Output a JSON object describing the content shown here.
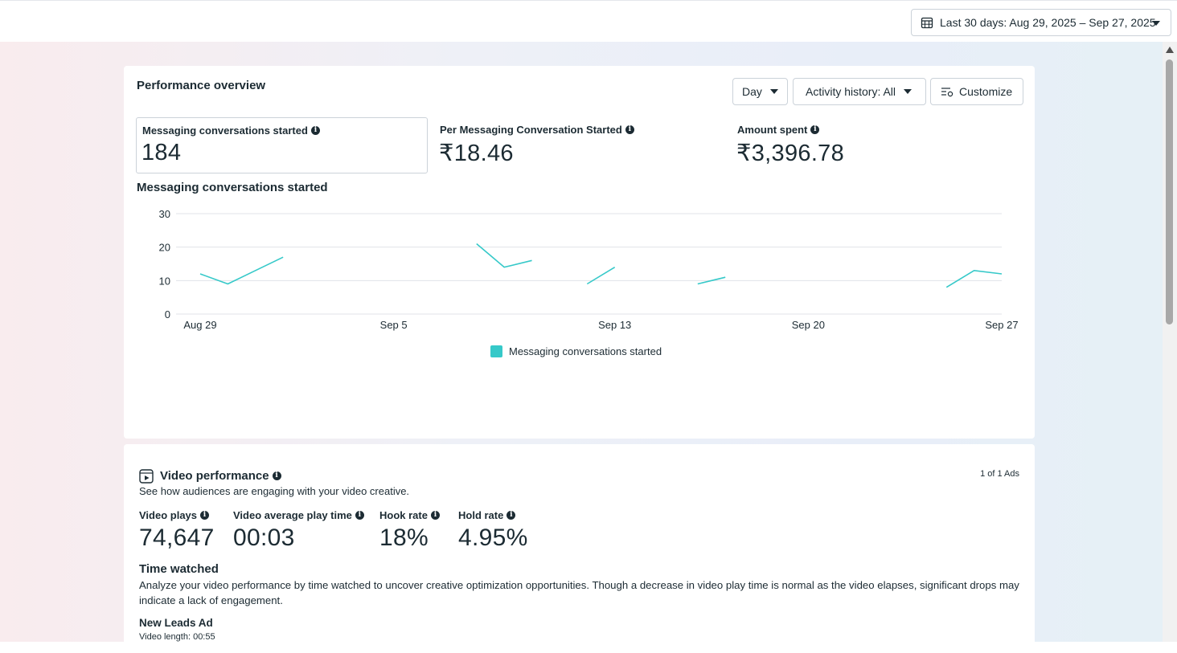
{
  "header": {
    "date_range_label": "Last 30 days: Aug 29, 2025 – Sep 27, 2025"
  },
  "performance": {
    "title": "Performance overview",
    "controls": {
      "day_label": "Day",
      "activity_label": "Activity history: All",
      "customize_label": "Customize"
    },
    "metrics": [
      {
        "label": "Messaging conversations started",
        "value": "184",
        "selected": true
      },
      {
        "label": "Per Messaging Conversation Started",
        "value": "₹18.46",
        "selected": false
      },
      {
        "label": "Amount spent",
        "value": "₹3,396.78",
        "selected": false
      }
    ],
    "chart_title": "Messaging conversations started",
    "legend_label": "Messaging conversations started"
  },
  "chart_data": {
    "type": "line",
    "title": "Messaging conversations started",
    "xlabel": "",
    "ylabel": "",
    "x_ticks": [
      "Aug 29",
      "Sep 5",
      "Sep 13",
      "Sep 20",
      "Sep 27"
    ],
    "y_ticks": [
      0,
      10,
      20,
      30
    ],
    "ylim": [
      0,
      30
    ],
    "grid": true,
    "legend_position": "bottom",
    "color": "#36c9c9",
    "series": [
      {
        "name": "Messaging conversations started",
        "points": [
          {
            "x": "Aug 29",
            "y": 12
          },
          {
            "x": "Aug 30",
            "y": 9
          },
          {
            "x": "Aug 31",
            "y": 13
          },
          {
            "x": "Sep 1",
            "y": 17
          },
          {
            "x": "Sep 2",
            "y": null
          },
          {
            "x": "Sep 3",
            "y": null
          },
          {
            "x": "Sep 4",
            "y": null
          },
          {
            "x": "Sep 5",
            "y": null
          },
          {
            "x": "Sep 6",
            "y": null
          },
          {
            "x": "Sep 7",
            "y": null
          },
          {
            "x": "Sep 8",
            "y": 21
          },
          {
            "x": "Sep 9",
            "y": 14
          },
          {
            "x": "Sep 10",
            "y": 16
          },
          {
            "x": "Sep 11",
            "y": null
          },
          {
            "x": "Sep 12",
            "y": 9
          },
          {
            "x": "Sep 13",
            "y": 14
          },
          {
            "x": "Sep 14",
            "y": null
          },
          {
            "x": "Sep 15",
            "y": null
          },
          {
            "x": "Sep 16",
            "y": 9
          },
          {
            "x": "Sep 17",
            "y": 11
          },
          {
            "x": "Sep 18",
            "y": null
          },
          {
            "x": "Sep 19",
            "y": null
          },
          {
            "x": "Sep 20",
            "y": null
          },
          {
            "x": "Sep 21",
            "y": null
          },
          {
            "x": "Sep 22",
            "y": null
          },
          {
            "x": "Sep 23",
            "y": null
          },
          {
            "x": "Sep 24",
            "y": null
          },
          {
            "x": "Sep 25",
            "y": 8
          },
          {
            "x": "Sep 26",
            "y": 13
          },
          {
            "x": "Sep 27",
            "y": 12
          }
        ]
      }
    ]
  },
  "video": {
    "title": "Video performance",
    "subtitle": "See how audiences are engaging with your video creative.",
    "ads_count": "1 of 1 Ads",
    "metrics": [
      {
        "label": "Video plays",
        "value": "74,647"
      },
      {
        "label": "Video average play time",
        "value": "00:03"
      },
      {
        "label": "Hook rate",
        "value": "18%"
      },
      {
        "label": "Hold rate",
        "value": "4.95%"
      }
    ],
    "time_watched_title": "Time watched",
    "time_watched_desc": "Analyze your video performance by time watched to uncover creative optimization opportunities. Though a decrease in video play time is normal as the video elapses, significant drops may indicate a lack of engagement.",
    "ad_name": "New Leads Ad",
    "video_length": "Video length: 00:55"
  },
  "icons": {
    "calendar": "calendar-icon",
    "customize": "customize-icon",
    "info": "info-icon",
    "video": "video-icon"
  }
}
